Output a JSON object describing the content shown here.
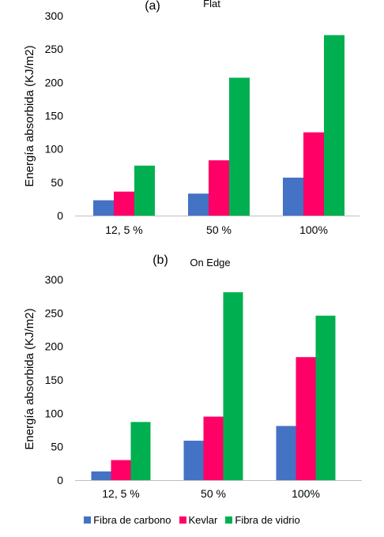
{
  "chart_data": [
    {
      "type": "bar",
      "panel_label": "(a)",
      "title": "Flat",
      "ylabel": "Energía absorbida (KJ/m2)",
      "categories": [
        "12, 5 %",
        "50 %",
        "100%"
      ],
      "ylim": [
        0,
        300
      ],
      "yticks": [
        0,
        50,
        100,
        150,
        200,
        250,
        300
      ],
      "grid": false,
      "series": [
        {
          "name": "Fibra de carbono",
          "color": "#4472c4",
          "values": [
            23,
            33,
            57
          ]
        },
        {
          "name": "Kevlar",
          "color": "#ff0066",
          "values": [
            36,
            83,
            125
          ]
        },
        {
          "name": "Fibra de vidrio",
          "color": "#00b050",
          "values": [
            75,
            207,
            271
          ]
        }
      ]
    },
    {
      "type": "bar",
      "panel_label": "(b)",
      "title": "On Edge",
      "ylabel": "Energía absorbida (KJ/m2)",
      "categories": [
        "12, 5 %",
        "50 %",
        "100%"
      ],
      "ylim": [
        0,
        300
      ],
      "yticks": [
        0,
        50,
        100,
        150,
        200,
        250,
        300
      ],
      "grid": false,
      "series": [
        {
          "name": "Fibra de carbono",
          "color": "#4472c4",
          "values": [
            13,
            59,
            81
          ]
        },
        {
          "name": "Kevlar",
          "color": "#ff0066",
          "values": [
            30,
            95,
            184
          ]
        },
        {
          "name": "Fibra de vidrio",
          "color": "#00b050",
          "values": [
            87,
            281,
            246
          ]
        }
      ]
    }
  ],
  "legend": {
    "placement": "bottom-center",
    "items": [
      {
        "label": "Fibra de carbono",
        "color": "#4472c4"
      },
      {
        "label": "Kevlar",
        "color": "#ff0066"
      },
      {
        "label": "Fibra de vidrio",
        "color": "#00b050"
      }
    ]
  }
}
